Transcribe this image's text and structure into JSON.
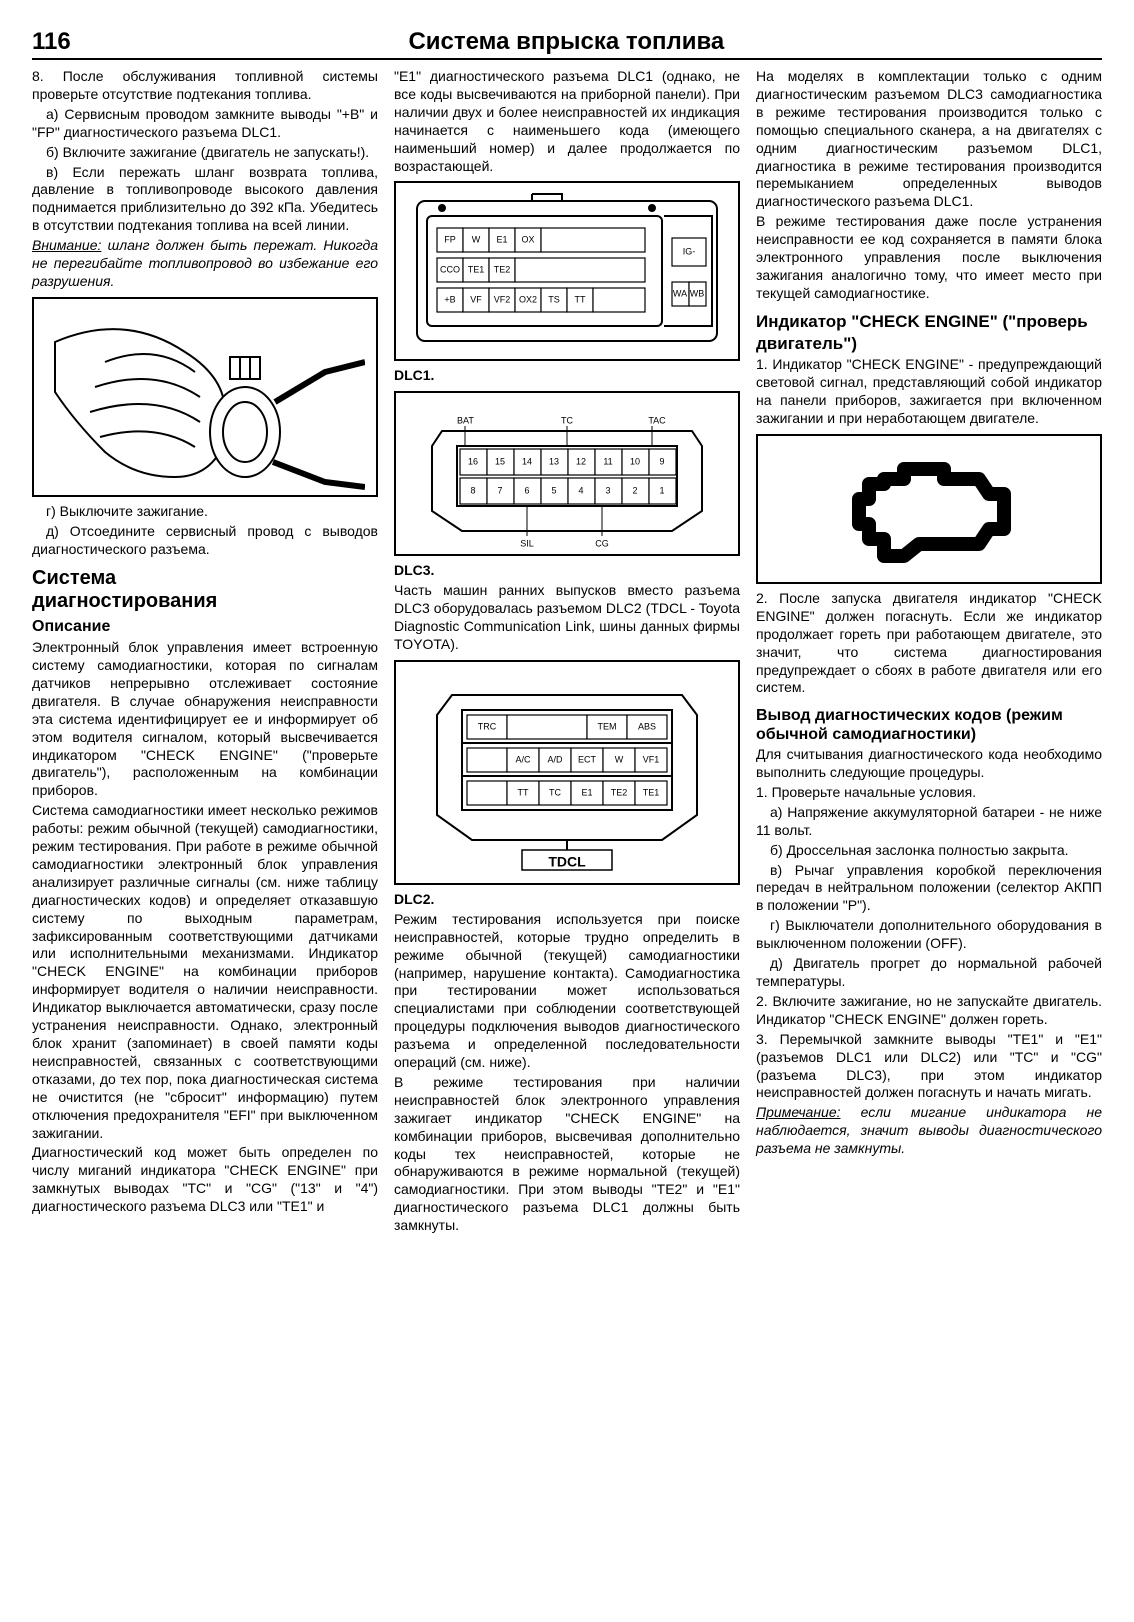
{
  "page_number": "116",
  "page_title": "Система впрыска топлива",
  "col1": {
    "p1": "8. После обслуживания топливной системы проверьте отсутствие подтекания топлива.",
    "p1a": "а) Сервисным проводом замкните выводы \"+B\" и \"FP\" диагностического разъема DLC1.",
    "p1b": "б) Включите зажигание (двигатель не запускать!).",
    "p1c": "в) Если пережать шланг возврата топлива, давление в топливопроводе высокого давления поднимается приблизительно до 392 кПа. Убедитесь в отсутствии подтекания топлива на всей линии.",
    "warn_label": "Внимание:",
    "warn_text": " шланг должен быть пережат. Никогда не перегибайте топливопровод во избежание его разрушения.",
    "p1g": "г) Выключите зажигание.",
    "p1d": "д) Отсоедините сервисный провод с выводов диагностического разъема.",
    "h2a": "Система",
    "h2b": "диагностирования",
    "h3": "Описание",
    "desc1": "Электронный блок управления имеет встроенную систему самодиагностики, которая по сигналам датчиков непрерывно отслеживает состояние двигателя. В случае обнаружения неисправности эта система идентифицирует ее и информирует об этом водителя сигналом, который высвечивается индикатором \"CHECK ENGINE\" (\"проверьте двигатель\"), расположенным на комбинации приборов.",
    "desc2": "Система самодиагностики имеет несколько режимов работы: режим обычной (текущей) самодиагностики, режим тестирования. При работе в режиме обычной самодиагностики электронный блок управления анализирует различные сигналы (см. ниже таблицу диагностических кодов) и определяет отказавшую систему по выходным параметрам, зафиксированным соответствующими датчиками или исполнительными механизмами. Индикатор \"CHECK ENGINE\" на комбинации приборов информирует водителя о наличии неисправности. Индикатор выключается автоматически, сразу после устранения неисправности. Однако, электронный блок хранит (запоминает) в своей памяти коды неисправностей, связанных с соответствующими отказами, до тех пор, пока диагностическая система не очистится (не \"сбросит\" информацию) путем отключения предохранителя \"EFI\" при выключенном зажигании.",
    "desc3": "Диагностический код может быть определен по числу миганий индикатора \"CHECK ENGINE\" при замкнутых выводах \"TC\" и \"CG\" (\"13\" и \"4\") диагностического разъема DLC3 или \"TE1\" и"
  },
  "col2": {
    "p1": "\"E1\" диагностического разъема DLC1 (однако, не все коды высвечиваются на приборной панели). При наличии двух и более неисправностей их индикация начинается с наименьшего кода (имеющего наименьший номер) и далее продолжается по возрастающей.",
    "dlc1_label": "DLC1.",
    "dlc1": {
      "row1": [
        "FP",
        "W",
        "E1",
        "OX"
      ],
      "row1_right": "IG-",
      "row2": [
        "CCO",
        "TE1",
        "TE2"
      ],
      "row3": [
        "+B",
        "VF",
        "VF2",
        "OX2",
        "TS",
        "TT"
      ],
      "row3_right": [
        "WA",
        "WB"
      ]
    },
    "dlc3_label": "DLC3.",
    "dlc3": {
      "top_labels": [
        "BAT",
        "TC",
        "TAC"
      ],
      "row1": [
        "16",
        "15",
        "14",
        "13",
        "12",
        "11",
        "10",
        "9"
      ],
      "row2": [
        "8",
        "7",
        "6",
        "5",
        "4",
        "3",
        "2",
        "1"
      ],
      "bot_labels": [
        "SIL",
        "CG"
      ]
    },
    "p2": "Часть машин ранних выпусков вместо разъема DLC3 оборудовалась разъемом DLC2 (TDCL - Toyota Diagnostic Communication Link, шины данных фирмы TOYOTA).",
    "dlc2_label": "DLC2.",
    "dlc2": {
      "row1_left": "TRC",
      "row1_right": [
        "TEM",
        "ABS"
      ],
      "row2": [
        "A/C",
        "A/D",
        "ECT",
        "W",
        "VF1"
      ],
      "row3": [
        "TT",
        "TC",
        "E1",
        "TE2",
        "TE1"
      ],
      "bottom": "TDCL"
    },
    "p3": "Режим тестирования используется при поиске неисправностей, которые трудно определить в режиме обычной (текущей) самодиагностики (например, нарушение контакта). Самодиагностика при тестировании может использоваться специалистами при соблюдении соответствующей процедуры подключения выводов диагностического разъема и определенной последовательности операций (см. ниже).",
    "p4": "В режиме тестирования при наличии неисправностей блок электронного управления зажигает индикатор \"CHECK ENGINE\" на комбинации приборов, высвечивая дополнительно коды тех неисправностей, которые не обнаруживаются в режиме нормальной (текущей) самодиагностики. При этом выводы \"TE2\" и \"E1\" диагностического разъема DLC1 должны быть замкнуты."
  },
  "col3": {
    "p1": "На моделях в комплектации только с одним диагностическим разъемом DLC3 самодиагностика в режиме тестирования производится только с помощью специального сканера, а на двигателях с одним диагностическим разъемом DLC1, диагностика в режиме тестирования производится перемыканием определенных выводов диагностического разъема DLC1.",
    "p2": "В режиме тестирования даже после устранения неисправности ее код сохраняется в памяти блока электронного управления после выключения зажигания аналогично тому, что имеет место при текущей самодиагностике.",
    "h3a": "Индикатор \"CHECK ENGINE\" (\"проверь двигатель\")",
    "p3": "1. Индикатор \"CHECK ENGINE\" - предупреждающий световой сигнал, представляющий собой индикатор на панели приборов, зажигается при включенном зажигании и при неработающем двигателе.",
    "p4": "2. После запуска двигателя индикатор \"CHECK ENGINE\" должен погаснуть. Если же индикатор продолжает гореть при работающем двигателе, это значит, что система диагностирования предупреждает о сбоях в работе двигателя или его систем.",
    "h3b": "Вывод диагностических кодов (режим обычной самодиагностики)",
    "p5": "Для считывания диагностического кода необходимо выполнить следующие процедуры.",
    "p6": "1. Проверьте начальные условия.",
    "p6a": "а) Напряжение аккумуляторной батареи - не ниже 11 вольт.",
    "p6b": "б) Дроссельная заслонка полностью закрыта.",
    "p6c": "в) Рычаг управления коробкой переключения передач в нейтральном положении (селектор АКПП в положении \"P\").",
    "p6d": "г) Выключатели дополнительного оборудования в выключенном положении (OFF).",
    "p6e": "д) Двигатель прогрет до нормальной рабочей температуры.",
    "p7": "2. Включите зажигание, но не запускайте двигатель. Индикатор \"CHECK ENGINE\" должен гореть.",
    "p8": "3. Перемычкой замкните выводы \"TE1\" и \"E1\" (разъемов DLC1 или DLC2) или \"TC\" и \"CG\" (разъема DLC3), при этом индикатор неисправностей должен погаснуть и начать мигать.",
    "note_label": "Примечание:",
    "note_text": " если мигание индикатора не наблюдается, значит выводы диагностического разъема не замкнуты."
  }
}
